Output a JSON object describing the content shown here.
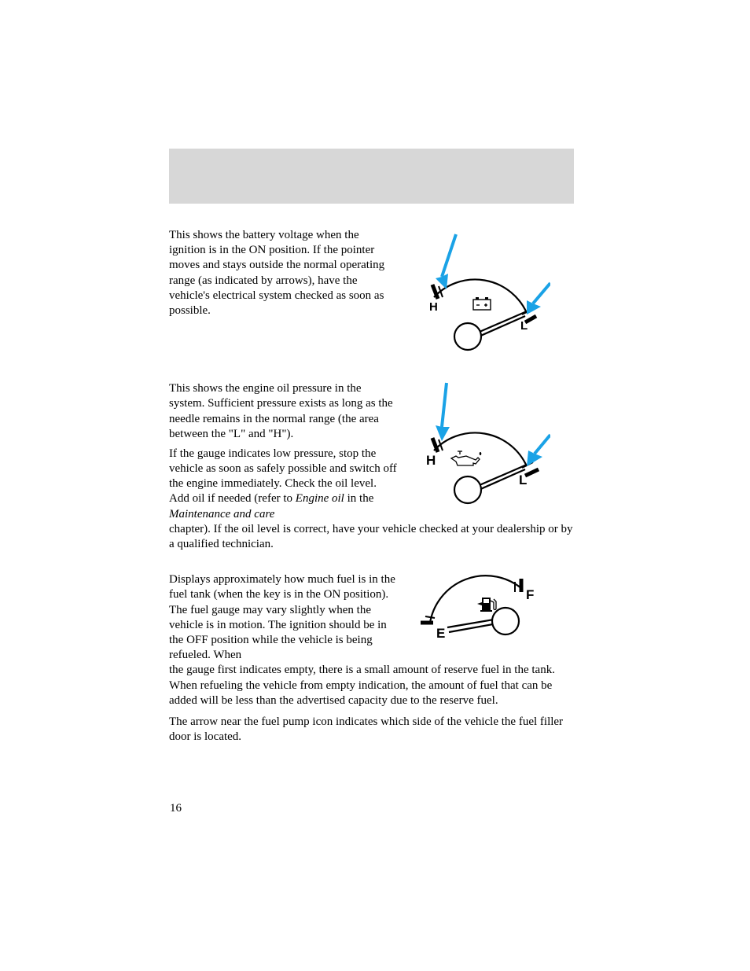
{
  "header_band_color": "#d7d7d7",
  "arrow_color": "#1aa2e6",
  "battery": {
    "para": "This shows the battery voltage when the ignition is in the ON position. If the pointer moves and stays outside the normal operating range (as indicated by arrows), have the vehicle's electrical system checked as soon as possible.",
    "gauge": {
      "left_label": "H",
      "right_label": "L"
    }
  },
  "oil": {
    "para1": "This shows the engine oil pressure in the system. Sufficient pressure exists as long as the needle remains in the normal range (the area between the \"L\" and \"H\").",
    "para2a": "If the gauge indicates low pressure, stop the vehicle as soon as safely possible and switch off the engine immediately. Check the oil level. Add oil if needed (refer to ",
    "para2_ital1": "Engine oil",
    "para2b": " in the ",
    "para2_ital2": "Maintenance and care",
    "para2c": " chapter). If the oil level is correct, have your vehicle checked at your dealership or by a qualified technician.",
    "gauge": {
      "left_label": "H",
      "right_label": "L"
    }
  },
  "fuel": {
    "para1": "Displays approximately how much fuel is in the fuel tank (when the key is in the ON position). The fuel gauge may vary slightly when the vehicle is in motion. The ignition should be in the OFF position while the vehicle is being refueled. When the gauge first indicates empty, there is a small amount of reserve fuel in the tank. When refueling the vehicle from empty indication, the amount of fuel that can be added will be less than the advertised capacity due to the reserve fuel.",
    "para2": "The arrow near the fuel pump icon indicates which side of the vehicle the fuel filler door is located.",
    "gauge": {
      "left_label": "E",
      "right_label": "F"
    }
  },
  "page_number": "16",
  "style": {
    "body_fontsize": 15,
    "text_color": "#000000",
    "bg_color": "#ffffff"
  }
}
